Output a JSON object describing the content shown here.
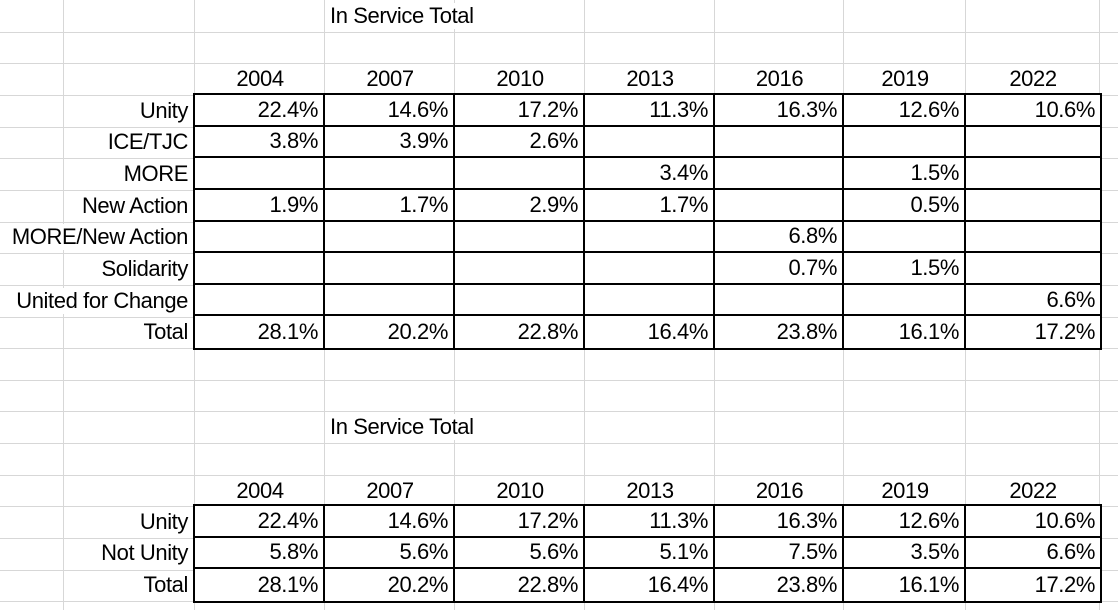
{
  "colors": {
    "background": "#ffffff",
    "gridline": "#d7d7d7",
    "table_border": "#000000",
    "text": "#000000"
  },
  "table1": {
    "title": "In Service Total",
    "years": [
      "2004",
      "2007",
      "2010",
      "2013",
      "2016",
      "2019",
      "2022"
    ],
    "rows": [
      {
        "label": "Unity",
        "values": [
          "22.4%",
          "14.6%",
          "17.2%",
          "11.3%",
          "16.3%",
          "12.6%",
          "10.6%"
        ]
      },
      {
        "label": "ICE/TJC",
        "values": [
          "3.8%",
          "3.9%",
          "2.6%",
          "",
          "",
          "",
          ""
        ]
      },
      {
        "label": "MORE",
        "values": [
          "",
          "",
          "",
          "3.4%",
          "",
          "1.5%",
          ""
        ]
      },
      {
        "label": "New Action",
        "values": [
          "1.9%",
          "1.7%",
          "2.9%",
          "1.7%",
          "",
          "0.5%",
          ""
        ]
      },
      {
        "label": "MORE/New Action",
        "values": [
          "",
          "",
          "",
          "",
          "6.8%",
          "",
          ""
        ]
      },
      {
        "label": "Solidarity",
        "values": [
          "",
          "",
          "",
          "",
          "0.7%",
          "1.5%",
          ""
        ]
      },
      {
        "label": "United for Change",
        "values": [
          "",
          "",
          "",
          "",
          "",
          "",
          "6.6%"
        ]
      },
      {
        "label": "Total",
        "values": [
          "28.1%",
          "20.2%",
          "22.8%",
          "16.4%",
          "23.8%",
          "16.1%",
          "17.2%"
        ]
      }
    ]
  },
  "table2": {
    "title": "In Service Total",
    "years": [
      "2004",
      "2007",
      "2010",
      "2013",
      "2016",
      "2019",
      "2022"
    ],
    "rows": [
      {
        "label": "Unity",
        "values": [
          "22.4%",
          "14.6%",
          "17.2%",
          "11.3%",
          "16.3%",
          "12.6%",
          "10.6%"
        ]
      },
      {
        "label": "Not Unity",
        "values": [
          "5.8%",
          "5.6%",
          "5.6%",
          "5.1%",
          "7.5%",
          "3.5%",
          "6.6%"
        ]
      },
      {
        "label": "Total",
        "values": [
          "28.1%",
          "20.2%",
          "22.8%",
          "16.4%",
          "23.8%",
          "16.1%",
          "17.2%"
        ]
      }
    ]
  }
}
